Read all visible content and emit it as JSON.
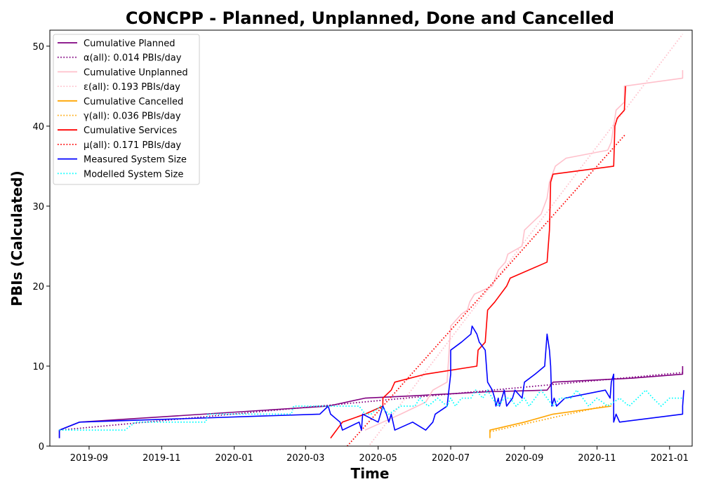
{
  "chart_data": {
    "type": "line",
    "title": "CONCPP - Planned, Unplanned, Done  and Cancelled",
    "xlabel": "Time",
    "ylabel": "PBIs (Calculated)",
    "xlim": [
      "2019-07-30",
      "2021-01-20"
    ],
    "ylim": [
      0,
      52
    ],
    "x_ticks": [
      "2019-09",
      "2019-11",
      "2020-01",
      "2020-03",
      "2020-05",
      "2020-07",
      "2020-09",
      "2020-11",
      "2021-01"
    ],
    "y_ticks": [
      0,
      10,
      20,
      30,
      40,
      50
    ],
    "legend_position": "top-left",
    "series": [
      {
        "name": "Cumulative Planned",
        "color": "#800080",
        "style": "solid",
        "points": [
          [
            "2019-08-07",
            1
          ],
          [
            "2019-08-07",
            2
          ],
          [
            "2019-08-24",
            3
          ],
          [
            "2020-03-20",
            5
          ],
          [
            "2020-04-20",
            6
          ],
          [
            "2020-06-01",
            6.3
          ],
          [
            "2020-08-01",
            6.8
          ],
          [
            "2020-09-20",
            7
          ],
          [
            "2020-09-25",
            8
          ],
          [
            "2020-12-01",
            8.5
          ],
          [
            "2021-01-12",
            9
          ],
          [
            "2021-01-12",
            10
          ]
        ]
      },
      {
        "name": "α(all): 0.014 PBIs/day",
        "color": "#800080",
        "style": "dotted",
        "points": [
          [
            "2019-08-07",
            2
          ],
          [
            "2021-01-12",
            9.2
          ]
        ]
      },
      {
        "name": "Cumulative Unplanned",
        "color": "#ffc0cb",
        "style": "solid",
        "points": [
          [
            "2020-04-20",
            2
          ],
          [
            "2020-05-05",
            3
          ],
          [
            "2020-05-20",
            4
          ],
          [
            "2020-06-10",
            5.5
          ],
          [
            "2020-06-16",
            7
          ],
          [
            "2020-06-28",
            8
          ],
          [
            "2020-07-01",
            15
          ],
          [
            "2020-07-10",
            16.5
          ],
          [
            "2020-07-15",
            17
          ],
          [
            "2020-07-17",
            18
          ],
          [
            "2020-07-21",
            19
          ],
          [
            "2020-08-05",
            20
          ],
          [
            "2020-08-10",
            22
          ],
          [
            "2020-08-16",
            23
          ],
          [
            "2020-08-18",
            24
          ],
          [
            "2020-08-30",
            25
          ],
          [
            "2020-09-01",
            27
          ],
          [
            "2020-09-15",
            29
          ],
          [
            "2020-09-20",
            31
          ],
          [
            "2020-09-22",
            33
          ],
          [
            "2020-09-27",
            35
          ],
          [
            "2020-10-06",
            36
          ],
          [
            "2020-11-10",
            37
          ],
          [
            "2020-11-13",
            38
          ],
          [
            "2020-11-15",
            40
          ],
          [
            "2020-11-17",
            42
          ],
          [
            "2020-11-24",
            43
          ],
          [
            "2020-11-24",
            45
          ],
          [
            "2021-01-12",
            46
          ],
          [
            "2021-01-12",
            47
          ]
        ]
      },
      {
        "name": "ε(all): 0.193 PBIs/day",
        "color": "#ffc0cb",
        "style": "dotted",
        "points": [
          [
            "2020-04-18",
            -1
          ],
          [
            "2021-01-12",
            51.5
          ]
        ]
      },
      {
        "name": "Cumulative Cancelled",
        "color": "#ffa500",
        "style": "solid",
        "points": [
          [
            "2020-08-03",
            1
          ],
          [
            "2020-08-03",
            2
          ],
          [
            "2020-09-01",
            3
          ],
          [
            "2020-09-25",
            4
          ],
          [
            "2020-11-13",
            5
          ]
        ]
      },
      {
        "name": "γ(all): 0.036 PBIs/day",
        "color": "#ffa500",
        "style": "dotted",
        "points": [
          [
            "2020-08-03",
            1.8
          ],
          [
            "2020-11-13",
            5.2
          ]
        ]
      },
      {
        "name": "Cumulative Services",
        "color": "#ff0000",
        "style": "solid",
        "points": [
          [
            "2020-03-22",
            1
          ],
          [
            "2020-04-01",
            3
          ],
          [
            "2020-04-20",
            4
          ],
          [
            "2020-05-05",
            5
          ],
          [
            "2020-05-05",
            6
          ],
          [
            "2020-05-12",
            7
          ],
          [
            "2020-05-15",
            8
          ],
          [
            "2020-06-10",
            9
          ],
          [
            "2020-07-23",
            10
          ],
          [
            "2020-07-24",
            12
          ],
          [
            "2020-07-30",
            13
          ],
          [
            "2020-07-31",
            15
          ],
          [
            "2020-08-01",
            17
          ],
          [
            "2020-08-07",
            18
          ],
          [
            "2020-08-17",
            20
          ],
          [
            "2020-08-20",
            21
          ],
          [
            "2020-09-20",
            23
          ],
          [
            "2020-09-22",
            27
          ],
          [
            "2020-09-23",
            33
          ],
          [
            "2020-09-25",
            34
          ],
          [
            "2020-11-15",
            35
          ],
          [
            "2020-11-16",
            40
          ],
          [
            "2020-11-18",
            41
          ],
          [
            "2020-11-24",
            42
          ],
          [
            "2020-11-25",
            45
          ]
        ]
      },
      {
        "name": "μ(all): 0.171 PBIs/day",
        "color": "#ff0000",
        "style": "dotted",
        "points": [
          [
            "2020-04-05",
            0
          ],
          [
            "2020-11-25",
            39
          ]
        ]
      },
      {
        "name": "Measured System Size",
        "color": "#0000ff",
        "style": "solid",
        "points": [
          [
            "2019-08-07",
            1
          ],
          [
            "2019-08-07",
            2
          ],
          [
            "2019-08-24",
            3
          ],
          [
            "2020-03-13",
            4
          ],
          [
            "2020-03-20",
            5
          ],
          [
            "2020-03-22",
            4
          ],
          [
            "2020-03-30",
            3
          ],
          [
            "2020-04-01",
            2
          ],
          [
            "2020-04-15",
            3
          ],
          [
            "2020-04-17",
            2
          ],
          [
            "2020-04-18",
            4
          ],
          [
            "2020-05-01",
            3
          ],
          [
            "2020-05-05",
            5
          ],
          [
            "2020-05-08",
            4
          ],
          [
            "2020-05-10",
            3
          ],
          [
            "2020-05-12",
            4
          ],
          [
            "2020-05-15",
            2
          ],
          [
            "2020-05-30",
            3
          ],
          [
            "2020-06-10",
            2
          ],
          [
            "2020-06-16",
            3
          ],
          [
            "2020-06-18",
            4
          ],
          [
            "2020-06-28",
            5
          ],
          [
            "2020-07-01",
            9
          ],
          [
            "2020-07-01",
            12
          ],
          [
            "2020-07-10",
            13
          ],
          [
            "2020-07-18",
            14
          ],
          [
            "2020-07-19",
            15
          ],
          [
            "2020-07-23",
            14
          ],
          [
            "2020-07-25",
            13
          ],
          [
            "2020-07-30",
            12
          ],
          [
            "2020-07-31",
            10
          ],
          [
            "2020-08-01",
            8
          ],
          [
            "2020-08-05",
            7
          ],
          [
            "2020-08-07",
            6
          ],
          [
            "2020-08-08",
            5
          ],
          [
            "2020-08-10",
            6
          ],
          [
            "2020-08-11",
            5
          ],
          [
            "2020-08-13",
            6
          ],
          [
            "2020-08-15",
            7
          ],
          [
            "2020-08-17",
            5
          ],
          [
            "2020-08-22",
            6
          ],
          [
            "2020-08-24",
            7
          ],
          [
            "2020-08-30",
            6
          ],
          [
            "2020-09-01",
            8
          ],
          [
            "2020-09-10",
            9
          ],
          [
            "2020-09-18",
            10
          ],
          [
            "2020-09-19",
            12
          ],
          [
            "2020-09-20",
            14
          ],
          [
            "2020-09-22",
            12
          ],
          [
            "2020-09-23",
            10
          ],
          [
            "2020-09-24",
            5
          ],
          [
            "2020-09-26",
            6
          ],
          [
            "2020-09-28",
            5
          ],
          [
            "2020-10-05",
            6
          ],
          [
            "2020-11-08",
            7
          ],
          [
            "2020-11-12",
            6
          ],
          [
            "2020-11-13",
            8
          ],
          [
            "2020-11-15",
            9
          ],
          [
            "2020-11-15",
            3
          ],
          [
            "2020-11-17",
            4
          ],
          [
            "2020-11-20",
            3
          ],
          [
            "2021-01-12",
            4
          ],
          [
            "2021-01-12",
            5
          ],
          [
            "2021-01-13",
            7
          ]
        ]
      },
      {
        "name": "Modelled System Size",
        "color": "#00ffff",
        "style": "dotted",
        "points": [
          [
            "2019-08-07",
            2
          ],
          [
            "2019-10-01",
            2
          ],
          [
            "2019-10-10",
            3
          ],
          [
            "2019-12-08",
            3
          ],
          [
            "2019-12-10",
            4
          ],
          [
            "2020-02-18",
            4
          ],
          [
            "2020-02-20",
            5
          ],
          [
            "2020-04-15",
            5
          ],
          [
            "2020-04-20",
            4
          ],
          [
            "2020-04-25",
            4
          ],
          [
            "2020-05-03",
            5
          ],
          [
            "2020-05-10",
            4
          ],
          [
            "2020-05-20",
            5
          ],
          [
            "2020-06-01",
            5
          ],
          [
            "2020-06-05",
            6
          ],
          [
            "2020-06-12",
            5
          ],
          [
            "2020-06-20",
            6
          ],
          [
            "2020-06-28",
            5
          ],
          [
            "2020-07-01",
            6
          ],
          [
            "2020-07-05",
            5
          ],
          [
            "2020-07-10",
            6
          ],
          [
            "2020-07-18",
            6
          ],
          [
            "2020-07-22",
            7
          ],
          [
            "2020-07-28",
            6
          ],
          [
            "2020-08-01",
            7
          ],
          [
            "2020-08-05",
            6
          ],
          [
            "2020-08-10",
            5
          ],
          [
            "2020-08-15",
            6
          ],
          [
            "2020-08-20",
            6
          ],
          [
            "2020-08-25",
            5
          ],
          [
            "2020-09-01",
            6
          ],
          [
            "2020-09-05",
            5
          ],
          [
            "2020-09-10",
            6
          ],
          [
            "2020-09-15",
            7
          ],
          [
            "2020-09-20",
            6
          ],
          [
            "2020-09-25",
            5
          ],
          [
            "2020-10-01",
            6
          ],
          [
            "2020-10-10",
            6
          ],
          [
            "2020-10-15",
            7
          ],
          [
            "2020-10-20",
            6
          ],
          [
            "2020-10-25",
            5
          ],
          [
            "2020-11-01",
            6
          ],
          [
            "2020-11-10",
            5
          ],
          [
            "2020-11-20",
            6
          ],
          [
            "2020-11-28",
            5
          ],
          [
            "2020-12-05",
            6
          ],
          [
            "2020-12-12",
            7
          ],
          [
            "2020-12-18",
            6
          ],
          [
            "2020-12-25",
            5
          ],
          [
            "2021-01-01",
            6
          ],
          [
            "2021-01-12",
            6
          ]
        ]
      }
    ]
  }
}
